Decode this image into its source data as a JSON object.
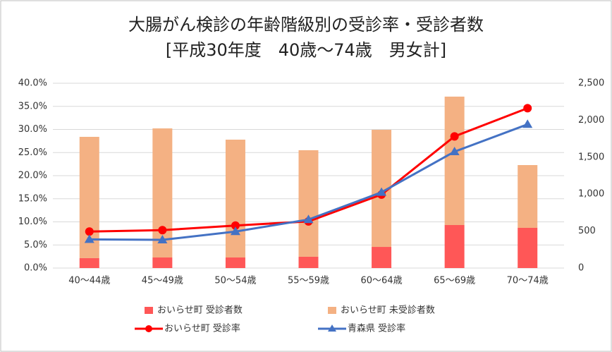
{
  "chart_data": {
    "type": "bar_line",
    "title": "大腸がん検診の年齢階級別の受診率・受診者数",
    "subtitle": "[平成30年度　40歳～74歳　男女計]",
    "categories": [
      "40～44歳",
      "45～49歳",
      "50～54歳",
      "55～59歳",
      "60～64歳",
      "65～69歳",
      "70～74歳"
    ],
    "series": [
      {
        "name": "おいらせ町 受診者数",
        "color": "#ff5757",
        "kind": "bar",
        "axis": "y2",
        "values": [
          134,
          143,
          143,
          153,
          286,
          582,
          544
        ]
      },
      {
        "name": "おいらせ町 未受診者数",
        "color": "#f4b183",
        "kind": "bar",
        "axis": "y2",
        "values": [
          1641,
          1746,
          1594,
          1441,
          1584,
          1737,
          849
        ]
      },
      {
        "name": "おいらせ町 受診率",
        "color": "#ff0000",
        "kind": "line",
        "marker": "circle",
        "values": [
          7.9,
          8.2,
          9.2,
          10.1,
          15.9,
          28.5,
          34.6
        ]
      },
      {
        "name": "青森県 受診率",
        "color": "#4472c4",
        "kind": "line",
        "marker": "triangle",
        "values": [
          6.2,
          6.1,
          7.9,
          10.5,
          16.4,
          25.2,
          31.1
        ]
      }
    ],
    "ylim": [
      0,
      40
    ],
    "yticks": [
      {
        "value": 0,
        "label": "0.0%"
      },
      {
        "value": 5,
        "label": "5.0%"
      },
      {
        "value": 10,
        "label": "10.0%"
      },
      {
        "value": 15,
        "label": "15.0%"
      },
      {
        "value": 20,
        "label": "20.0%"
      },
      {
        "value": 25,
        "label": "25.0%"
      },
      {
        "value": 30,
        "label": "30.0%"
      },
      {
        "value": 35,
        "label": "35.0%"
      },
      {
        "value": 40,
        "label": "40.0%"
      }
    ],
    "y2lim": [
      0,
      2500
    ],
    "y2ticks": [
      0,
      500,
      {
        "value": 1000,
        "label": "1,000"
      },
      {
        "value": 1500,
        "label": "1,500"
      },
      {
        "value": 2000,
        "label": "2,000"
      },
      {
        "value": 2500,
        "label": "2,500"
      }
    ],
    "grid": true
  }
}
